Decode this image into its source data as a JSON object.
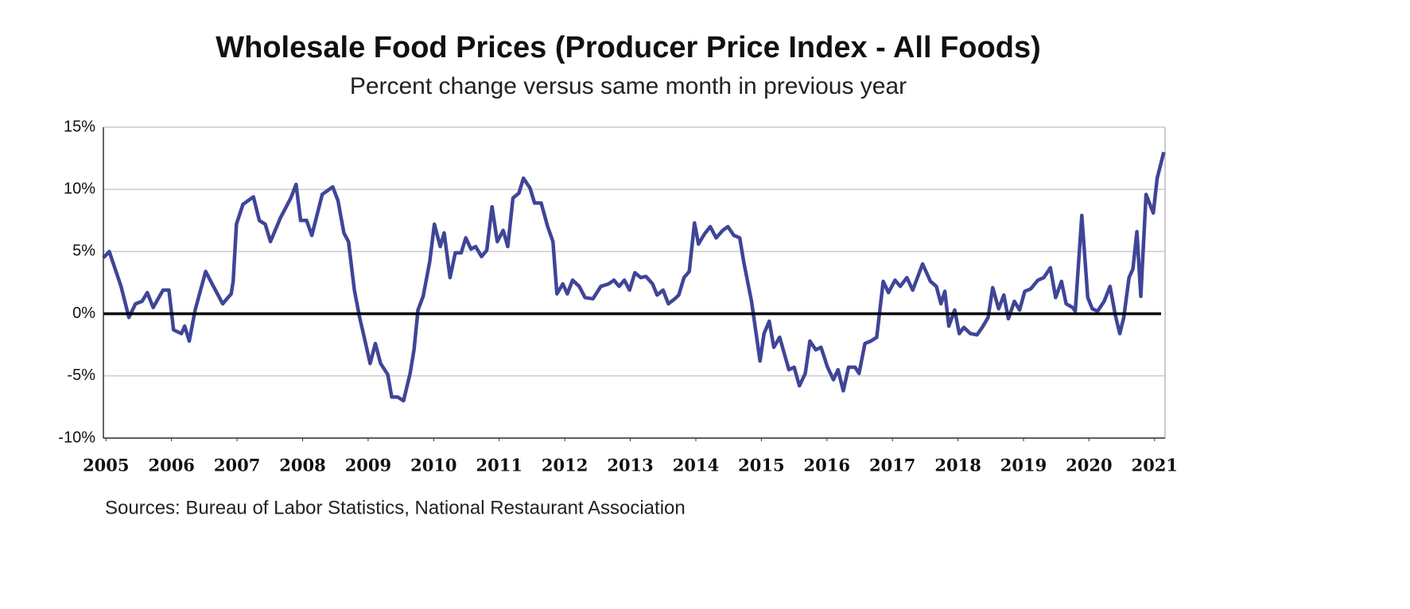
{
  "chart_data": {
    "type": "line",
    "title": "Wholesale Food Prices (Producer Price Index - All Foods)",
    "subtitle": "Percent change versus same month in previous year",
    "source": "Sources: Bureau of Labor Statistics, National Restaurant Association",
    "xlim": [
      2004.96,
      2021.16
    ],
    "xticks": [
      2005,
      2006,
      2007,
      2008,
      2009,
      2010,
      2011,
      2012,
      2013,
      2014,
      2015,
      2016,
      2017,
      2018,
      2019,
      2020,
      2021
    ],
    "ylim": [
      -10,
      15
    ],
    "yticks": [
      {
        "value": -10,
        "label": "-10%"
      },
      {
        "value": -5,
        "label": "-5%"
      },
      {
        "value": 0,
        "label": "0%"
      },
      {
        "value": 5,
        "label": "5%"
      },
      {
        "value": 10,
        "label": "10%"
      },
      {
        "value": 15,
        "label": "15%"
      }
    ],
    "grid": true,
    "series": [
      {
        "color": "#3f4597",
        "x": [
          2004.96,
          2005.05,
          2005.23,
          2005.35,
          2005.45,
          2005.55,
          2005.63,
          2005.72,
          2005.87,
          2005.96,
          2006.03,
          2006.15,
          2006.2,
          2006.27,
          2006.36,
          2006.52,
          2006.64,
          2006.78,
          2006.91,
          2006.94,
          2006.99,
          2007.09,
          2007.25,
          2007.34,
          2007.43,
          2007.51,
          2007.66,
          2007.82,
          2007.9,
          2007.97,
          2008.06,
          2008.14,
          2008.3,
          2008.46,
          2008.54,
          2008.63,
          2008.7,
          2008.79,
          2008.87,
          2008.94,
          2009.03,
          2009.11,
          2009.19,
          2009.3,
          2009.36,
          2009.45,
          2009.54,
          2009.64,
          2009.7,
          2009.76,
          2009.84,
          2009.94,
          2010.01,
          2010.1,
          2010.16,
          2010.25,
          2010.33,
          2010.42,
          2010.49,
          2010.57,
          2010.64,
          2010.73,
          2010.81,
          2010.89,
          2010.97,
          2011.06,
          2011.13,
          2011.21,
          2011.3,
          2011.37,
          2011.47,
          2011.54,
          2011.64,
          2011.74,
          2011.82,
          2011.88,
          2011.97,
          2012.04,
          2012.12,
          2012.22,
          2012.31,
          2012.43,
          2012.55,
          2012.67,
          2012.75,
          2012.83,
          2012.91,
          2012.99,
          2013.07,
          2013.16,
          2013.24,
          2013.34,
          2013.41,
          2013.5,
          2013.58,
          2013.68,
          2013.74,
          2013.82,
          2013.9,
          2013.98,
          2014.04,
          2014.13,
          2014.22,
          2014.31,
          2014.41,
          2014.49,
          2014.58,
          2014.67,
          2014.73,
          2014.85,
          2014.98,
          2015.04,
          2015.12,
          2015.19,
          2015.28,
          2015.42,
          2015.5,
          2015.58,
          2015.67,
          2015.74,
          2015.83,
          2015.91,
          2016.01,
          2016.1,
          2016.17,
          2016.25,
          2016.33,
          2016.43,
          2016.49,
          2016.58,
          2016.67,
          2016.76,
          2016.86,
          2016.94,
          2017.04,
          2017.12,
          2017.22,
          2017.31,
          2017.46,
          2017.58,
          2017.67,
          2017.74,
          2017.8,
          2017.86,
          2017.95,
          2018.02,
          2018.09,
          2018.19,
          2018.29,
          2018.37,
          2018.46,
          2018.53,
          2018.62,
          2018.7,
          2018.77,
          2018.86,
          2018.94,
          2019.02,
          2019.11,
          2019.22,
          2019.31,
          2019.41,
          2019.49,
          2019.58,
          2019.65,
          2019.75,
          2019.79,
          2019.89,
          2019.98,
          2020.05,
          2020.13,
          2020.23,
          2020.32,
          2020.4,
          2020.47,
          2020.53,
          2020.61,
          2020.67,
          2020.73,
          2020.79,
          2020.87,
          2020.98,
          2021.04,
          2021.14
        ],
        "values": [
          4.5,
          5.0,
          2.2,
          -0.3,
          0.8,
          1.0,
          1.7,
          0.5,
          1.9,
          1.9,
          -1.3,
          -1.6,
          -1.0,
          -2.2,
          0.3,
          3.4,
          2.2,
          0.8,
          1.6,
          2.6,
          7.2,
          8.8,
          9.4,
          7.5,
          7.2,
          5.8,
          7.7,
          9.3,
          10.4,
          7.5,
          7.5,
          6.3,
          9.6,
          10.2,
          9.1,
          6.5,
          5.8,
          1.9,
          -0.3,
          -1.9,
          -4.0,
          -2.4,
          -4.0,
          -4.9,
          -6.7,
          -6.7,
          -7.0,
          -4.8,
          -2.9,
          0.3,
          1.4,
          4.2,
          7.2,
          5.4,
          6.5,
          2.9,
          4.9,
          4.9,
          6.1,
          5.2,
          5.4,
          4.6,
          5.1,
          8.6,
          5.8,
          6.7,
          5.4,
          9.3,
          9.7,
          10.9,
          10.1,
          8.9,
          8.9,
          7.0,
          5.8,
          1.6,
          2.4,
          1.6,
          2.7,
          2.2,
          1.3,
          1.2,
          2.2,
          2.4,
          2.7,
          2.2,
          2.7,
          1.9,
          3.3,
          2.9,
          3.0,
          2.4,
          1.5,
          1.9,
          0.8,
          1.2,
          1.5,
          2.9,
          3.4,
          7.3,
          5.6,
          6.4,
          7.0,
          6.1,
          6.7,
          7.0,
          6.3,
          6.1,
          4.2,
          1.0,
          -3.8,
          -1.6,
          -0.6,
          -2.7,
          -1.9,
          -4.5,
          -4.3,
          -5.8,
          -4.8,
          -2.2,
          -2.9,
          -2.7,
          -4.3,
          -5.3,
          -4.5,
          -6.2,
          -4.3,
          -4.3,
          -4.8,
          -2.4,
          -2.2,
          -1.9,
          2.6,
          1.7,
          2.7,
          2.2,
          2.9,
          1.9,
          4.0,
          2.6,
          2.2,
          0.8,
          1.8,
          -1.0,
          0.3,
          -1.6,
          -1.1,
          -1.6,
          -1.7,
          -1.1,
          -0.3,
          2.1,
          0.4,
          1.5,
          -0.4,
          1.0,
          0.3,
          1.8,
          2.0,
          2.7,
          2.9,
          3.7,
          1.3,
          2.6,
          0.8,
          0.5,
          0.2,
          7.9,
          1.3,
          0.4,
          0.2,
          1.0,
          2.2,
          -0.1,
          -1.6,
          -0.3,
          2.9,
          3.6,
          6.6,
          1.4,
          9.6,
          8.1,
          10.9,
          13.0
        ]
      }
    ]
  }
}
